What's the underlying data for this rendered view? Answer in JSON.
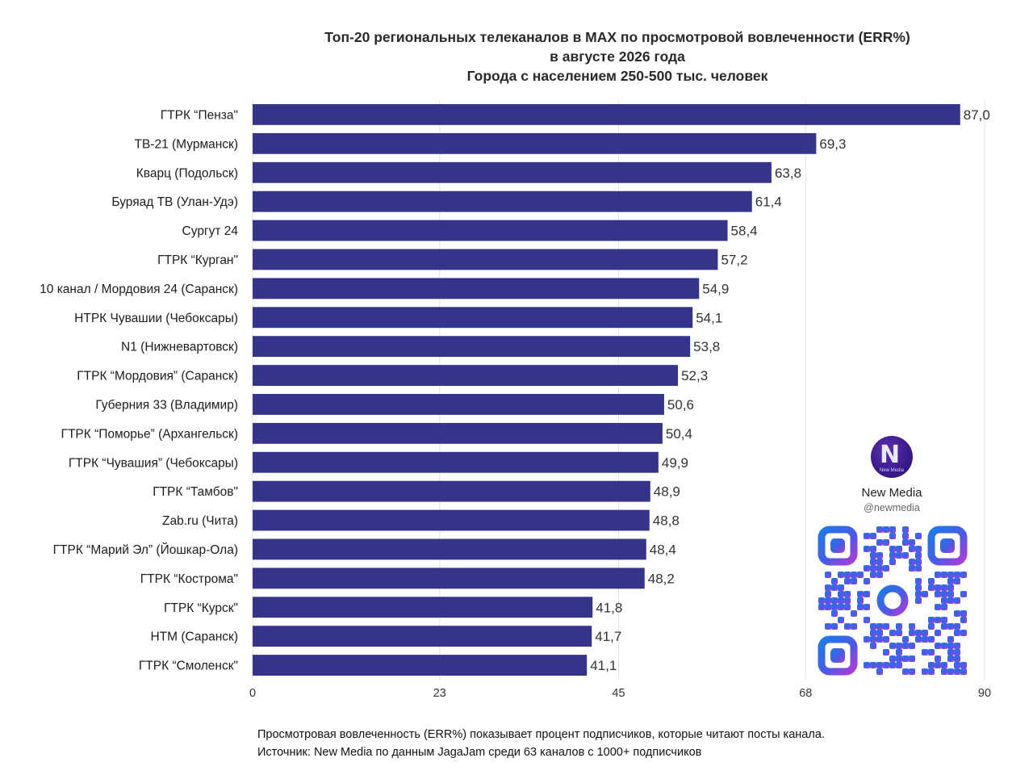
{
  "title": {
    "line1": "Топ-20 региональных телеканалов в MAX по просмотровой вовлеченности (ERR%)",
    "line2": "в августе 2026 года",
    "line3": "Города с населением 250-500 тыс. человек"
  },
  "chart_data": {
    "type": "bar",
    "orientation": "horizontal",
    "categories": [
      "ГТРК “Пенза\"",
      "ТВ-21 (Мурманск)",
      "Кварц (Подольск)",
      "Буряад ТВ (Улан-Удэ)",
      "Сургут 24",
      "ГТРК “Курган\"",
      "10 канал / Мордовия 24 (Саранск)",
      "НТРК Чувашии (Чебоксары)",
      "N1 (Нижневартовск)",
      "ГТРК “Мордовия” (Саранск)",
      "Губерния 33 (Владимир)",
      "ГТРК “Поморье” (Архангельск)",
      "ГТРК “Чувашия” (Чебоксары)",
      "ГТРК “Тамбов\"",
      "Zab.ru (Чита)",
      "ГТРК “Марий Эл” (Йошкар-Ола)",
      "ГТРК “Кострома\"",
      "ГТРК “Курск\"",
      "НТМ (Саранск)",
      "ГТРК “Смоленск\""
    ],
    "values": [
      87.0,
      69.3,
      63.8,
      61.4,
      58.4,
      57.2,
      54.9,
      54.1,
      53.8,
      52.3,
      50.6,
      50.4,
      49.9,
      48.9,
      48.8,
      48.4,
      48.2,
      41.8,
      41.7,
      41.1
    ],
    "value_labels": [
      "87,0",
      "69,3",
      "63,8",
      "61,4",
      "58,4",
      "57,2",
      "54,9",
      "54,1",
      "53,8",
      "52,3",
      "50,6",
      "50,4",
      "49,9",
      "48,9",
      "48,8",
      "48,4",
      "48,2",
      "41,8",
      "41,7",
      "41,1"
    ],
    "xlim": [
      0,
      90
    ],
    "xticks": [
      0,
      23,
      45,
      68,
      90
    ],
    "xtick_labels": [
      "0",
      "23",
      "45",
      "68",
      "90"
    ],
    "grid": true,
    "bar_color": "#34348a"
  },
  "brand": {
    "logo_letter": "N",
    "logo_small_text": "New Media",
    "name": "New Media",
    "handle": "@newmedia"
  },
  "footer": {
    "line1": "Просмотровая вовлеченность (ERR%) показывает процент подписчиков, которые читают посты канала.",
    "line2": "Источник: New Media по данным JagaJam среди 63 каналов с 1000+ подписчиков"
  }
}
